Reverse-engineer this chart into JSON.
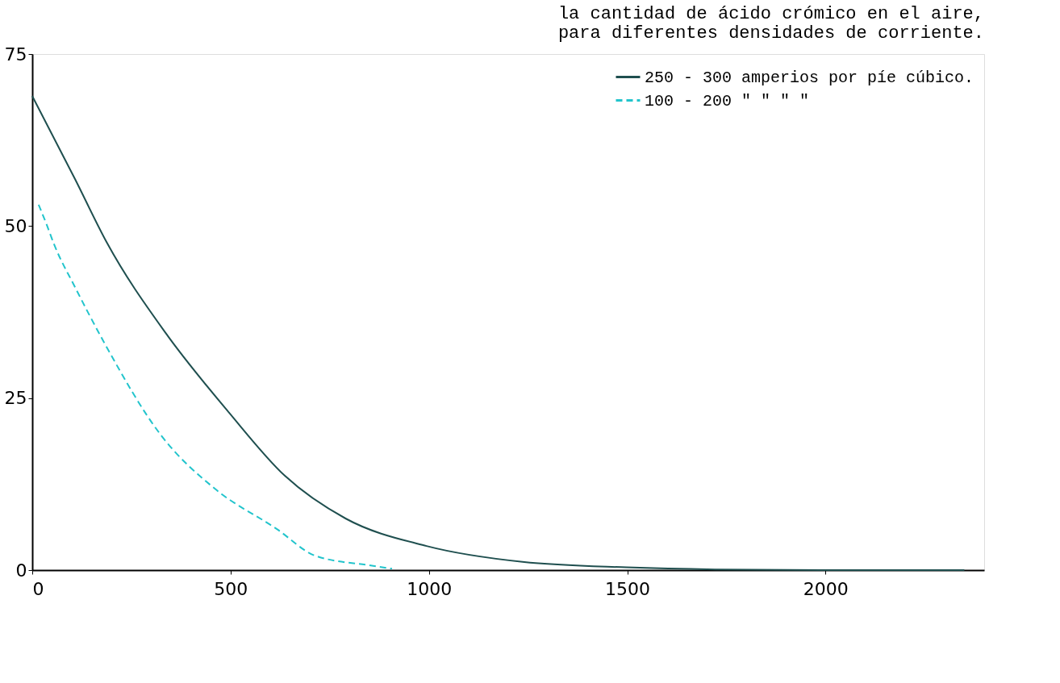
{
  "chart_data": {
    "type": "line",
    "title": [
      "la cantidad de ácido crómico en el aire,",
      "para diferentes densidades de corriente."
    ],
    "xlim": [
      0,
      2400
    ],
    "xticks": [
      0,
      500,
      1000,
      1500,
      2000
    ],
    "ylim": [
      0,
      75
    ],
    "yticks": [
      0,
      25,
      50,
      75
    ],
    "grid": false,
    "legend": "top right",
    "marker": "none",
    "series": [
      {
        "name": "250 - 300 amperios por píe cúbico.",
        "color": "#1f4f4f",
        "line_style": "solid",
        "x": [
          0,
          108,
          188,
          337,
          496,
          637,
          790,
          994,
          1236,
          1498,
          1721,
          2000,
          2350
        ],
        "values": [
          68.9,
          56.8,
          47.6,
          34.4,
          22.9,
          13.7,
          7.5,
          3.5,
          1.2,
          0.4,
          0.1,
          0,
          0
        ]
      },
      {
        "name": "100 - 200   \"   \"   \"   \"",
        "color": "#22c4cc",
        "line_style": "dashed",
        "x": [
          16,
          35,
          56,
          108,
          180,
          326,
          461,
          616,
          713,
          849,
          907
        ],
        "values": [
          53.1,
          50.4,
          47.2,
          41.1,
          33.2,
          19.5,
          11.8,
          6.0,
          2.1,
          0.7,
          0.2
        ]
      }
    ]
  }
}
